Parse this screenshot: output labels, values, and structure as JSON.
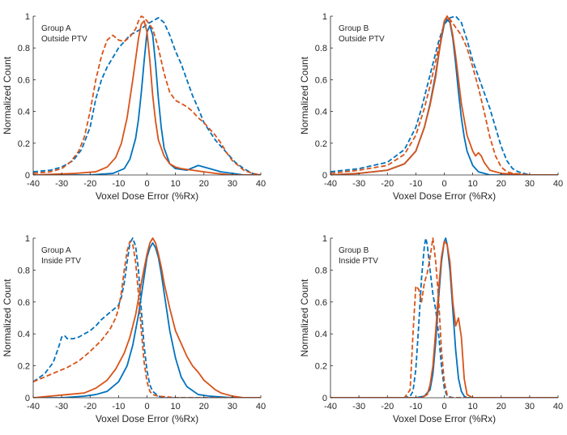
{
  "colors": {
    "blue": "#0072BD",
    "orange": "#D95319",
    "axis": "#262626"
  },
  "chart_data": [
    {
      "type": "line",
      "panel": "top-left",
      "annotation": [
        "Group A",
        "Outside PTV"
      ],
      "xlabel": "Voxel Dose Error (%Rx)",
      "ylabel": "Normalized Count",
      "xlim": [
        -40,
        40
      ],
      "ylim": [
        0,
        1
      ],
      "xticks": [
        "-40",
        "-30",
        "-20",
        "-10",
        "0",
        "10",
        "20",
        "30",
        "40"
      ],
      "yticks": [
        "0",
        "0.2",
        "0.4",
        "0.6",
        "0.8",
        "1"
      ],
      "series": [
        {
          "name": "blue-solid",
          "color": "blue",
          "style": "solid",
          "x": [
            -40,
            -20,
            -12,
            -8,
            -6,
            -4,
            -3,
            -2,
            -1,
            0,
            1,
            2,
            3,
            4,
            5,
            6,
            8,
            10,
            14,
            18,
            22,
            26,
            30,
            34,
            40
          ],
          "y": [
            0,
            0,
            0.01,
            0.04,
            0.1,
            0.23,
            0.35,
            0.52,
            0.72,
            0.9,
            0.94,
            0.88,
            0.7,
            0.48,
            0.3,
            0.17,
            0.07,
            0.04,
            0.03,
            0.06,
            0.04,
            0.02,
            0.01,
            0,
            0
          ]
        },
        {
          "name": "blue-dashed",
          "color": "blue",
          "style": "dashed",
          "x": [
            -40,
            -34,
            -30,
            -26,
            -23,
            -20,
            -18,
            -16,
            -14,
            -12,
            -10,
            -8,
            -6,
            -4,
            -2,
            0,
            2,
            4,
            6,
            8,
            10,
            12,
            14,
            16,
            18,
            20,
            24,
            28,
            31,
            34,
            37,
            40
          ],
          "y": [
            0.02,
            0.03,
            0.05,
            0.09,
            0.16,
            0.3,
            0.48,
            0.6,
            0.68,
            0.74,
            0.8,
            0.84,
            0.88,
            0.9,
            0.92,
            0.95,
            0.97,
            0.99,
            0.96,
            0.88,
            0.78,
            0.7,
            0.6,
            0.5,
            0.42,
            0.33,
            0.22,
            0.14,
            0.08,
            0.04,
            0.01,
            0
          ]
        },
        {
          "name": "orange-solid",
          "color": "orange",
          "style": "solid",
          "x": [
            -40,
            -25,
            -18,
            -14,
            -11,
            -9,
            -7,
            -5,
            -3,
            -2,
            -1,
            0,
            1,
            2,
            3,
            4,
            6,
            8,
            10,
            12,
            16,
            20,
            24,
            30,
            40
          ],
          "y": [
            0,
            0.01,
            0.02,
            0.05,
            0.11,
            0.2,
            0.36,
            0.6,
            0.86,
            0.95,
            0.97,
            0.9,
            0.72,
            0.5,
            0.34,
            0.22,
            0.12,
            0.07,
            0.05,
            0.04,
            0.03,
            0.02,
            0.01,
            0,
            0
          ]
        },
        {
          "name": "orange-dashed",
          "color": "orange",
          "style": "dashed",
          "x": [
            -40,
            -34,
            -30,
            -27,
            -24,
            -22,
            -20,
            -18,
            -16,
            -14,
            -12,
            -10,
            -8,
            -6,
            -4,
            -3,
            -2,
            -1,
            0,
            2,
            4,
            6,
            8,
            10,
            12,
            14,
            16,
            18,
            20,
            22,
            24,
            26,
            28,
            30,
            32,
            34,
            37,
            40
          ],
          "y": [
            0.01,
            0.02,
            0.04,
            0.08,
            0.15,
            0.24,
            0.4,
            0.6,
            0.75,
            0.85,
            0.88,
            0.85,
            0.84,
            0.87,
            0.92,
            0.97,
            1.0,
            0.99,
            0.97,
            0.92,
            0.8,
            0.64,
            0.52,
            0.47,
            0.45,
            0.43,
            0.4,
            0.36,
            0.33,
            0.29,
            0.25,
            0.2,
            0.14,
            0.09,
            0.06,
            0.03,
            0.01,
            0
          ]
        }
      ]
    },
    {
      "type": "line",
      "panel": "top-right",
      "annotation": [
        "Group B",
        "Outside PTV"
      ],
      "xlabel": "Voxel Dose Error (%Rx)",
      "ylabel": "Normalized Count",
      "xlim": [
        -40,
        40
      ],
      "ylim": [
        0,
        1
      ],
      "xticks": [
        "-40",
        "-30",
        "-20",
        "-10",
        "0",
        "10",
        "20",
        "30",
        "40"
      ],
      "yticks": [
        "0",
        "0.2",
        "0.4",
        "0.6",
        "0.8",
        "1"
      ],
      "series": [
        {
          "name": "blue-solid",
          "color": "blue",
          "style": "solid",
          "x": [
            -40,
            -30,
            -20,
            -14,
            -10,
            -7,
            -5,
            -3,
            -2,
            -1,
            0,
            1,
            2,
            3,
            4,
            5,
            6,
            7,
            8,
            10,
            12,
            14,
            16,
            20,
            30,
            40
          ],
          "y": [
            0,
            0.01,
            0.03,
            0.07,
            0.15,
            0.3,
            0.45,
            0.64,
            0.76,
            0.86,
            0.95,
            0.98,
            0.96,
            0.86,
            0.7,
            0.52,
            0.36,
            0.24,
            0.15,
            0.06,
            0.02,
            0.01,
            0,
            0,
            0,
            0
          ]
        },
        {
          "name": "blue-dashed",
          "color": "blue",
          "style": "dashed",
          "x": [
            -40,
            -30,
            -20,
            -14,
            -10,
            -8,
            -6,
            -4,
            -2,
            0,
            2,
            4,
            6,
            8,
            10,
            12,
            14,
            16,
            18,
            20,
            22,
            24,
            26,
            28,
            30,
            40
          ],
          "y": [
            0.02,
            0.04,
            0.08,
            0.16,
            0.3,
            0.42,
            0.56,
            0.7,
            0.84,
            0.95,
            0.99,
            1.0,
            0.96,
            0.85,
            0.72,
            0.62,
            0.52,
            0.42,
            0.3,
            0.18,
            0.09,
            0.04,
            0.02,
            0.01,
            0,
            0
          ]
        },
        {
          "name": "orange-solid",
          "color": "orange",
          "style": "solid",
          "x": [
            -40,
            -30,
            -20,
            -14,
            -10,
            -7,
            -5,
            -3,
            -2,
            -1,
            0,
            1,
            2,
            3,
            4,
            5,
            6,
            8,
            10,
            11,
            12,
            13,
            14,
            16,
            20,
            30,
            40
          ],
          "y": [
            0,
            0.01,
            0.03,
            0.07,
            0.15,
            0.3,
            0.44,
            0.62,
            0.75,
            0.87,
            0.97,
            1.0,
            0.97,
            0.88,
            0.75,
            0.6,
            0.45,
            0.25,
            0.15,
            0.12,
            0.14,
            0.12,
            0.08,
            0.03,
            0.01,
            0,
            0
          ]
        },
        {
          "name": "orange-dashed",
          "color": "orange",
          "style": "dashed",
          "x": [
            -40,
            -30,
            -20,
            -14,
            -10,
            -7,
            -5,
            -3,
            -1,
            0,
            1,
            2,
            4,
            6,
            8,
            10,
            12,
            14,
            16,
            18,
            20,
            22,
            24,
            30,
            40
          ],
          "y": [
            0.01,
            0.03,
            0.06,
            0.13,
            0.25,
            0.42,
            0.56,
            0.72,
            0.88,
            0.96,
            1.0,
            0.98,
            0.93,
            0.88,
            0.8,
            0.68,
            0.55,
            0.4,
            0.24,
            0.12,
            0.05,
            0.02,
            0.01,
            0,
            0
          ]
        }
      ]
    },
    {
      "type": "line",
      "panel": "bottom-left",
      "annotation": [
        "Group A",
        "Inside PTV"
      ],
      "xlabel": "Voxel Dose Error (%Rx)",
      "ylabel": "Normalized Count",
      "xlim": [
        -40,
        40
      ],
      "ylim": [
        0,
        1
      ],
      "xticks": [
        "-40",
        "-30",
        "-20",
        "-10",
        "0",
        "10",
        "20",
        "30",
        "40"
      ],
      "yticks": [
        "0",
        "0.2",
        "0.4",
        "0.6",
        "0.8",
        "1"
      ],
      "series": [
        {
          "name": "blue-solid",
          "color": "blue",
          "style": "solid",
          "x": [
            -40,
            -30,
            -22,
            -18,
            -14,
            -10,
            -7,
            -5,
            -3,
            -1,
            0,
            1,
            2,
            3,
            4,
            5,
            6,
            8,
            10,
            12,
            14,
            18,
            22,
            30,
            40
          ],
          "y": [
            0,
            0,
            0.01,
            0.02,
            0.04,
            0.1,
            0.2,
            0.33,
            0.52,
            0.76,
            0.88,
            0.94,
            0.97,
            0.94,
            0.88,
            0.78,
            0.66,
            0.42,
            0.25,
            0.13,
            0.07,
            0.02,
            0.01,
            0,
            0
          ]
        },
        {
          "name": "blue-dashed",
          "color": "blue",
          "style": "dashed",
          "x": [
            -40,
            -36,
            -33,
            -31,
            -30,
            -29,
            -28,
            -26,
            -24,
            -22,
            -20,
            -18,
            -16,
            -14,
            -12,
            -10,
            -9,
            -8,
            -7,
            -6,
            -5,
            -4,
            -3,
            -2,
            -1,
            0,
            1,
            2,
            4,
            6,
            10,
            20,
            40
          ],
          "y": [
            0.1,
            0.15,
            0.22,
            0.32,
            0.38,
            0.39,
            0.37,
            0.37,
            0.38,
            0.4,
            0.42,
            0.45,
            0.49,
            0.52,
            0.55,
            0.58,
            0.63,
            0.72,
            0.85,
            0.97,
            1.0,
            0.95,
            0.8,
            0.55,
            0.32,
            0.17,
            0.08,
            0.04,
            0.01,
            0,
            0,
            0,
            0
          ]
        },
        {
          "name": "orange-solid",
          "color": "orange",
          "style": "solid",
          "x": [
            -40,
            -34,
            -28,
            -22,
            -18,
            -14,
            -11,
            -8,
            -6,
            -4,
            -2,
            0,
            1,
            2,
            3,
            4,
            5,
            6,
            8,
            10,
            12,
            14,
            16,
            18,
            20,
            22,
            24,
            26,
            28,
            30,
            34,
            40
          ],
          "y": [
            0,
            0.01,
            0.02,
            0.03,
            0.06,
            0.11,
            0.18,
            0.28,
            0.38,
            0.52,
            0.72,
            0.9,
            0.97,
            1.0,
            0.97,
            0.9,
            0.82,
            0.72,
            0.56,
            0.42,
            0.34,
            0.26,
            0.2,
            0.16,
            0.11,
            0.08,
            0.05,
            0.03,
            0.02,
            0.01,
            0,
            0
          ]
        },
        {
          "name": "orange-dashed",
          "color": "orange",
          "style": "dashed",
          "x": [
            -40,
            -36,
            -32,
            -28,
            -24,
            -20,
            -16,
            -13,
            -11,
            -10,
            -9,
            -8,
            -7,
            -6,
            -5,
            -4,
            -3,
            -2,
            -1,
            0,
            1,
            2,
            4,
            10,
            40
          ],
          "y": [
            0.1,
            0.13,
            0.16,
            0.19,
            0.23,
            0.29,
            0.36,
            0.43,
            0.5,
            0.56,
            0.66,
            0.8,
            0.92,
            0.98,
            0.96,
            0.85,
            0.65,
            0.42,
            0.22,
            0.1,
            0.04,
            0.02,
            0.01,
            0,
            0
          ]
        }
      ]
    },
    {
      "type": "line",
      "panel": "bottom-right",
      "annotation": [
        "Group B",
        "Inside PTV"
      ],
      "xlabel": "Voxel Dose Error (%Rx)",
      "ylabel": "Normalized Count",
      "xlim": [
        -40,
        40
      ],
      "ylim": [
        0,
        1
      ],
      "xticks": [
        "-40",
        "-30",
        "-20",
        "-10",
        "0",
        "10",
        "20",
        "30",
        "40"
      ],
      "yticks": [
        "0",
        "0.2",
        "0.4",
        "0.6",
        "0.8",
        "1"
      ],
      "series": [
        {
          "name": "blue-solid",
          "color": "blue",
          "style": "solid",
          "x": [
            -40,
            -10,
            -7,
            -5,
            -4,
            -3,
            -2,
            -1,
            0,
            0.5,
            1,
            2,
            3,
            4,
            5,
            6,
            7,
            8,
            10,
            40
          ],
          "y": [
            0,
            0,
            0.01,
            0.05,
            0.15,
            0.35,
            0.62,
            0.85,
            0.98,
            1.0,
            0.96,
            0.8,
            0.55,
            0.3,
            0.12,
            0.04,
            0.01,
            0,
            0,
            0
          ]
        },
        {
          "name": "blue-dashed",
          "color": "blue",
          "style": "dashed",
          "x": [
            -40,
            -14,
            -12,
            -11,
            -10,
            -9,
            -8,
            -7,
            -6.5,
            -6,
            -5,
            -4,
            -3,
            -2,
            -1,
            0,
            1,
            3,
            40
          ],
          "y": [
            0,
            0,
            0.01,
            0.04,
            0.18,
            0.45,
            0.75,
            0.95,
            1.0,
            0.96,
            0.8,
            0.65,
            0.55,
            0.4,
            0.2,
            0.06,
            0.01,
            0,
            0
          ]
        },
        {
          "name": "orange-solid",
          "color": "orange",
          "style": "solid",
          "x": [
            -40,
            -8,
            -6,
            -5,
            -4,
            -3,
            -2,
            -1,
            0,
            1,
            2,
            3,
            4,
            5,
            6,
            7,
            8,
            10,
            12,
            40
          ],
          "y": [
            0,
            0,
            0.02,
            0.08,
            0.2,
            0.42,
            0.68,
            0.88,
            0.98,
            0.96,
            0.85,
            0.6,
            0.45,
            0.5,
            0.38,
            0.12,
            0.02,
            0,
            0,
            0
          ]
        },
        {
          "name": "orange-dashed",
          "color": "orange",
          "style": "dashed",
          "x": [
            -40,
            -14,
            -12,
            -11,
            -10,
            -9,
            -8,
            -7,
            -6,
            -5,
            -4,
            -3,
            -2,
            -1,
            0,
            1,
            2,
            4,
            40
          ],
          "y": [
            0,
            0,
            0.05,
            0.4,
            0.7,
            0.68,
            0.6,
            0.72,
            0.78,
            0.88,
            1.0,
            0.85,
            0.62,
            0.3,
            0.1,
            0.02,
            0,
            0,
            0
          ]
        }
      ]
    }
  ]
}
